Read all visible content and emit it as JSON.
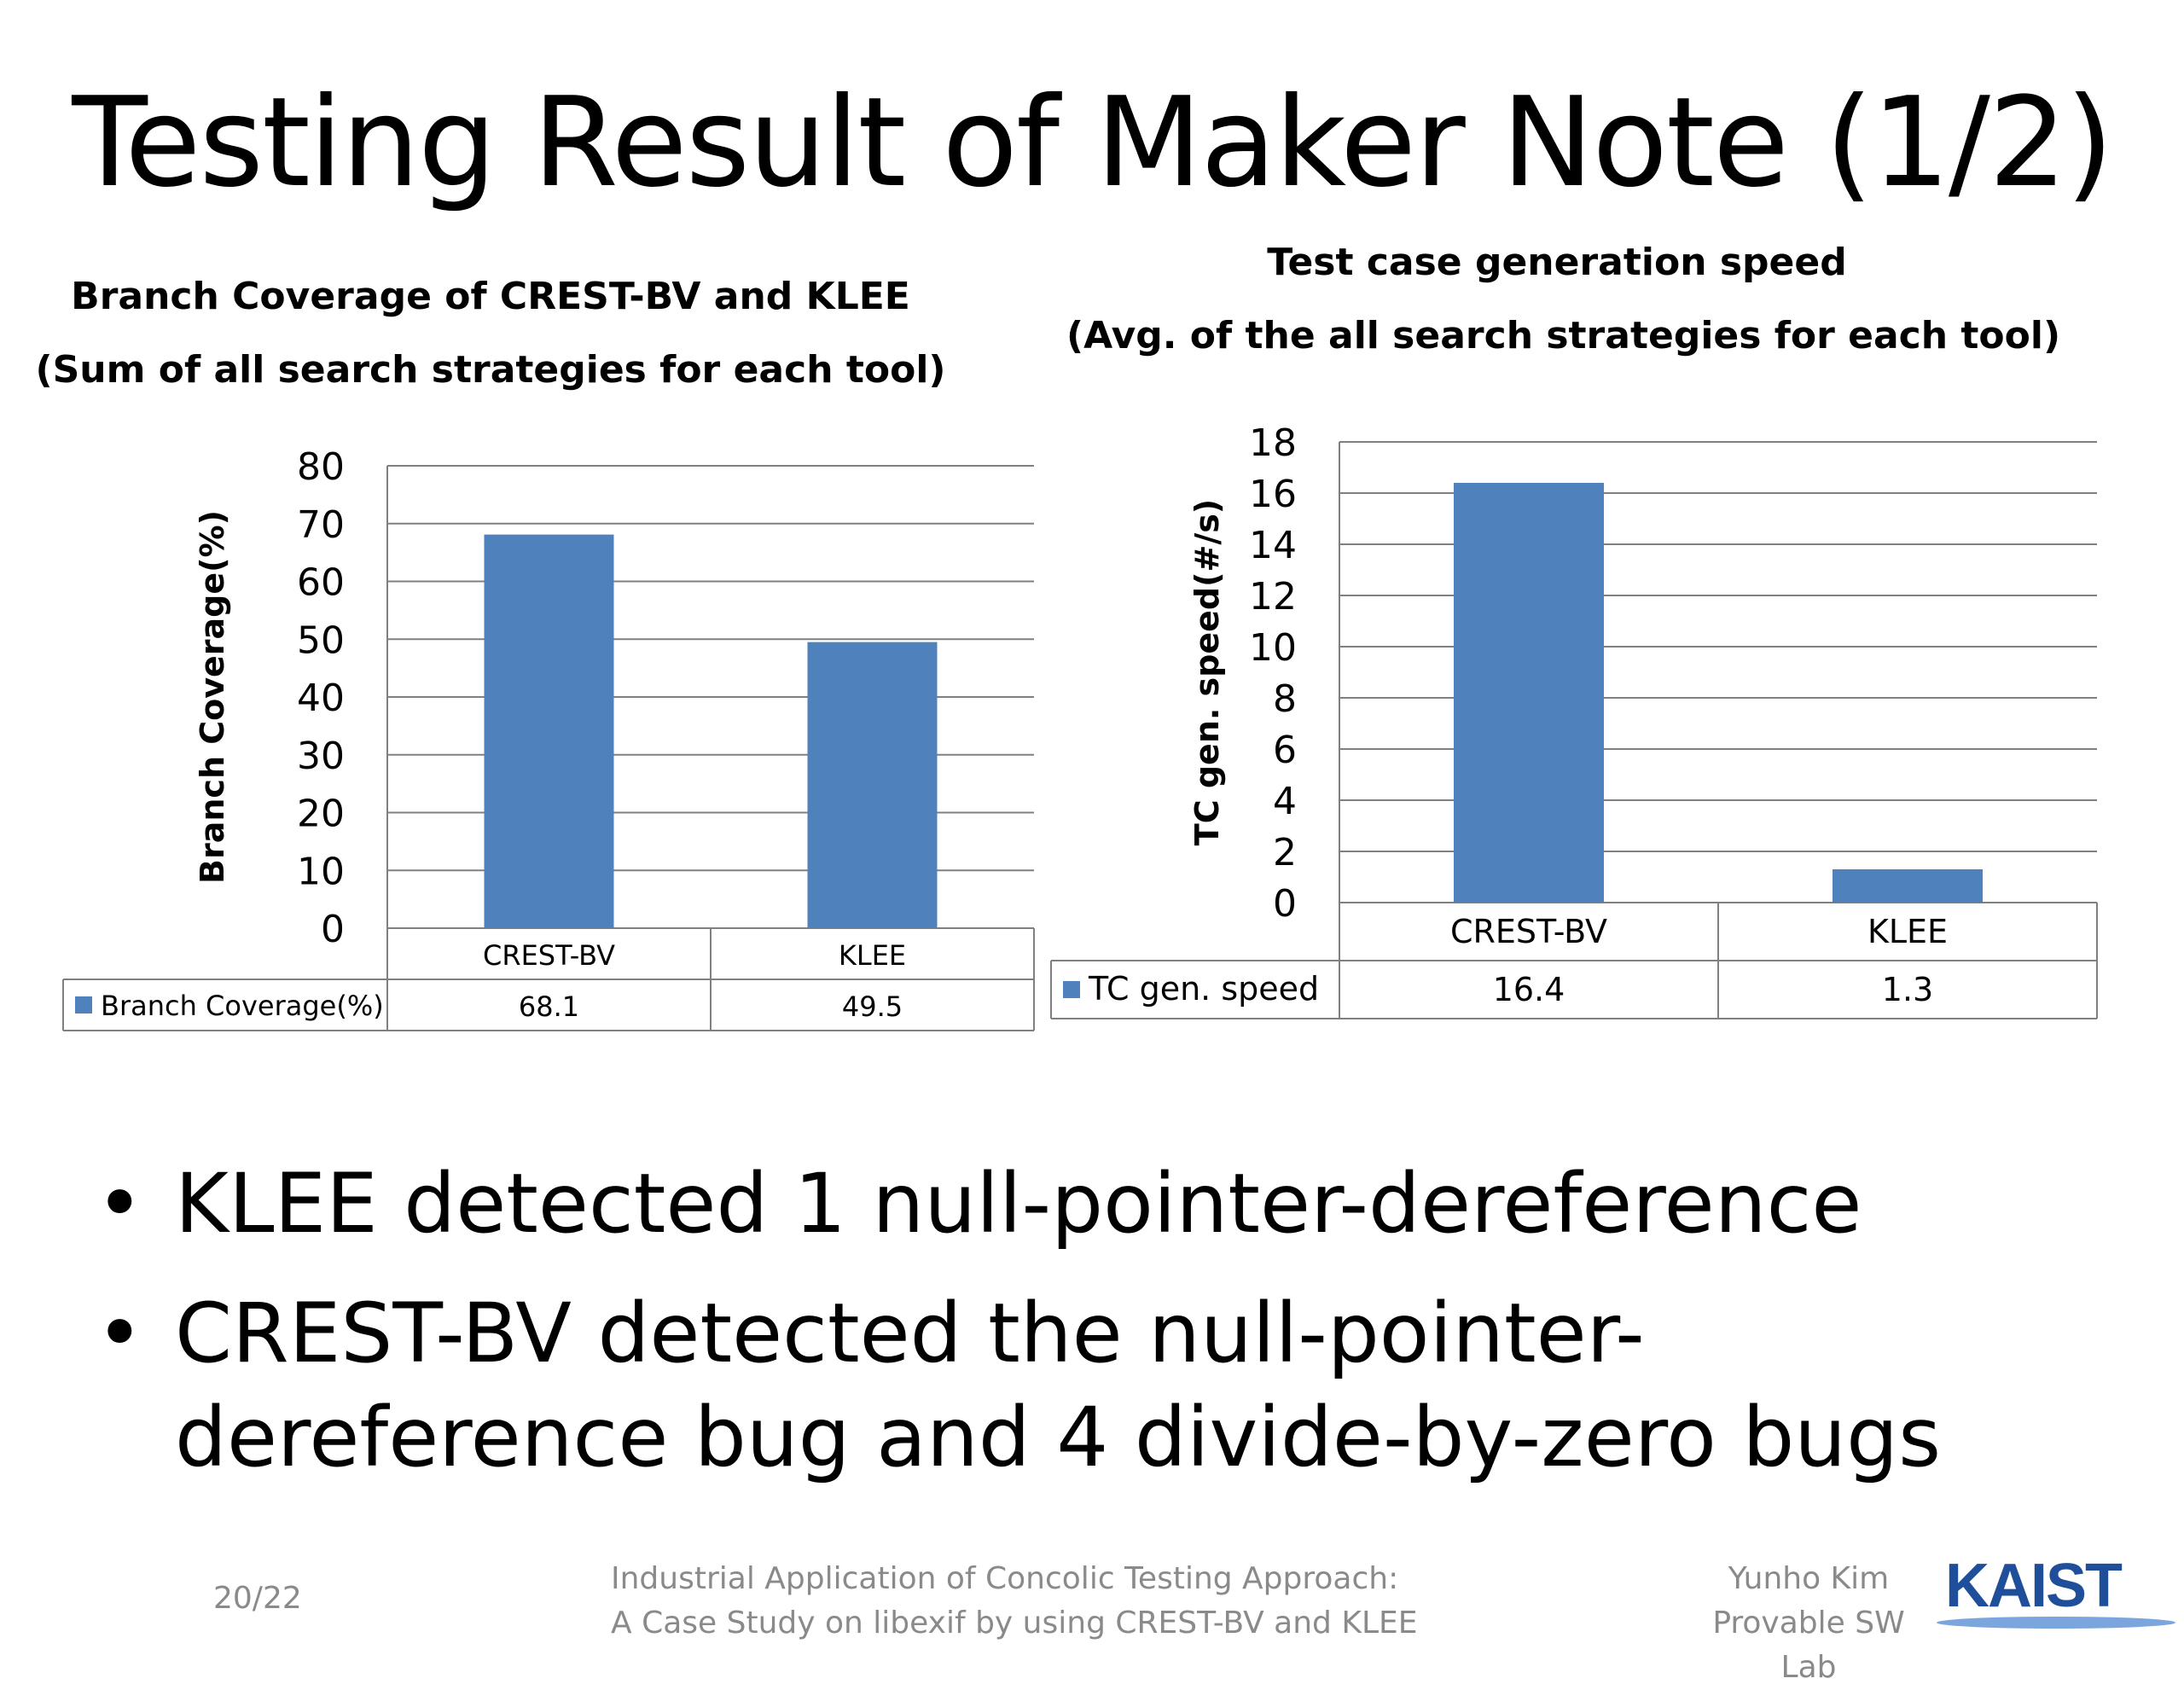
{
  "slide": {
    "title": "Testing Result of Maker Note (1/2)",
    "bullets": [
      "KLEE detected 1 null-pointer-dereference",
      "CREST-BV detected the null-pointer-dereference bug and 4 divide-by-zero bugs"
    ],
    "bullet_lines": [
      [
        "KLEE detected 1 null-pointer-dereference"
      ],
      [
        "CREST-BV detected the null-pointer-",
        "dereference bug and 4 divide-by-zero bugs"
      ]
    ],
    "footer": {
      "page": "20/22",
      "subtitle_line1": "Industrial Application of Concolic Testing Approach:",
      "subtitle_line2": "A Case Study on libexif by using CREST-BV and KLEE",
      "author": "Yunho Kim",
      "lab": "Provable SW Lab",
      "logo": "KAIST"
    }
  },
  "colors": {
    "bar": "#4f81bd",
    "grid": "#808080",
    "text": "#000000",
    "footer": "#8a8a8a"
  },
  "chart_data": [
    {
      "type": "bar",
      "title_lines": [
        "Branch Coverage of CREST-BV and KLEE",
        "(Sum of all search strategies for each tool)"
      ],
      "ylabel": "Branch Coverage(%)",
      "categories": [
        "CREST-BV",
        "KLEE"
      ],
      "series": [
        {
          "name": "Branch Coverage(%)",
          "values": [
            68.1,
            49.5
          ],
          "value_labels": [
            "68.1",
            "49.5"
          ]
        }
      ],
      "ylim": [
        0,
        80
      ],
      "yticks": [
        0,
        10,
        20,
        30,
        40,
        50,
        60,
        70,
        80
      ],
      "grid": true,
      "data_table": true
    },
    {
      "type": "bar",
      "title_lines": [
        "Test case generation speed",
        "(Avg. of the all search strategies for each tool)"
      ],
      "ylabel": "TC gen. speed(#/s)",
      "categories": [
        "CREST-BV",
        "KLEE"
      ],
      "series": [
        {
          "name": "TC gen. speed",
          "values": [
            16.4,
            1.3
          ],
          "value_labels": [
            "16.4",
            "1.3"
          ]
        }
      ],
      "ylim": [
        0,
        18
      ],
      "yticks": [
        0,
        2,
        4,
        6,
        8,
        10,
        12,
        14,
        16,
        18
      ],
      "grid": true,
      "data_table": true
    }
  ]
}
